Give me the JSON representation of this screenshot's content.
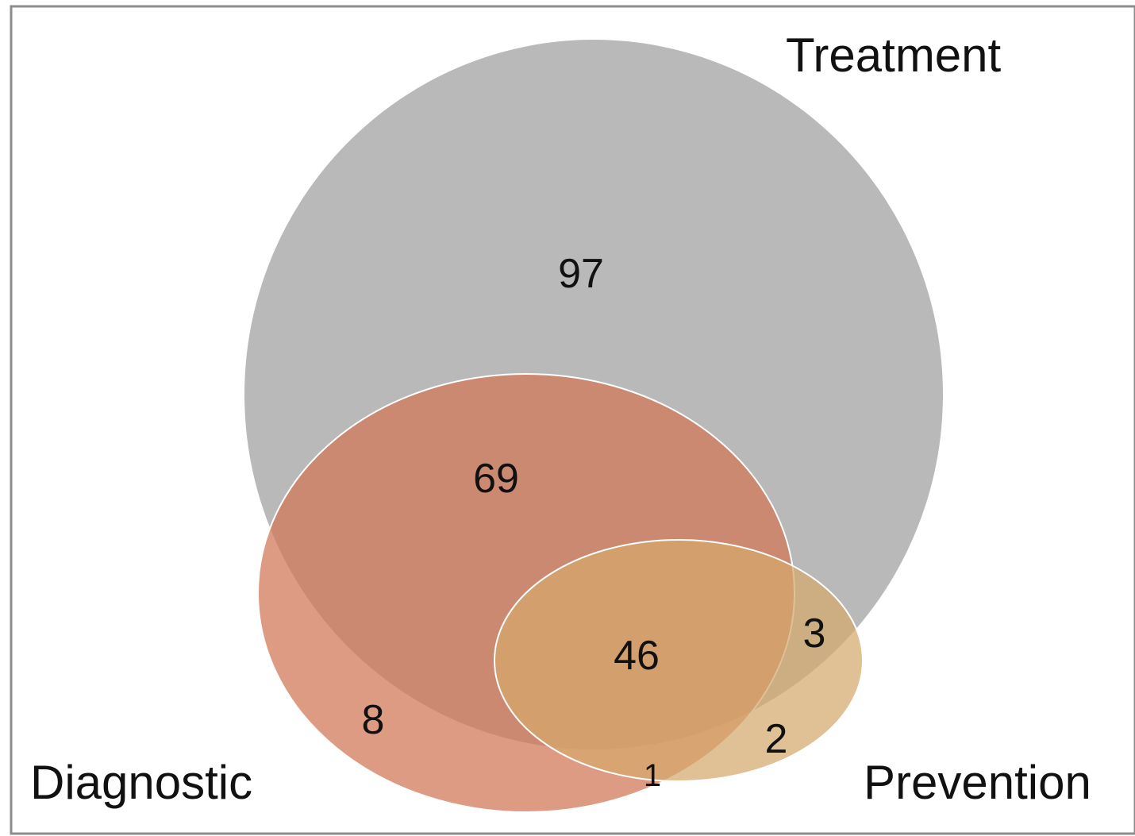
{
  "diagram": {
    "type": "venn",
    "sets": [
      {
        "id": "treatment",
        "label": "Treatment",
        "color": "#b9b9b9"
      },
      {
        "id": "diagnostic",
        "label": "Diagnostic",
        "color": "#d27a5a"
      },
      {
        "id": "prevention",
        "label": "Prevention",
        "color": "#d4a86c"
      }
    ],
    "regions": {
      "treatment_only": "97",
      "treatment_diagnostic": "69",
      "all_three": "46",
      "diagnostic_only": "8",
      "treatment_prevention": "3",
      "prevention_only": "2",
      "diagnostic_prevention": "1"
    },
    "colors": {
      "frame_stroke": "#8c8c8c",
      "outline": "#ffffff"
    }
  }
}
